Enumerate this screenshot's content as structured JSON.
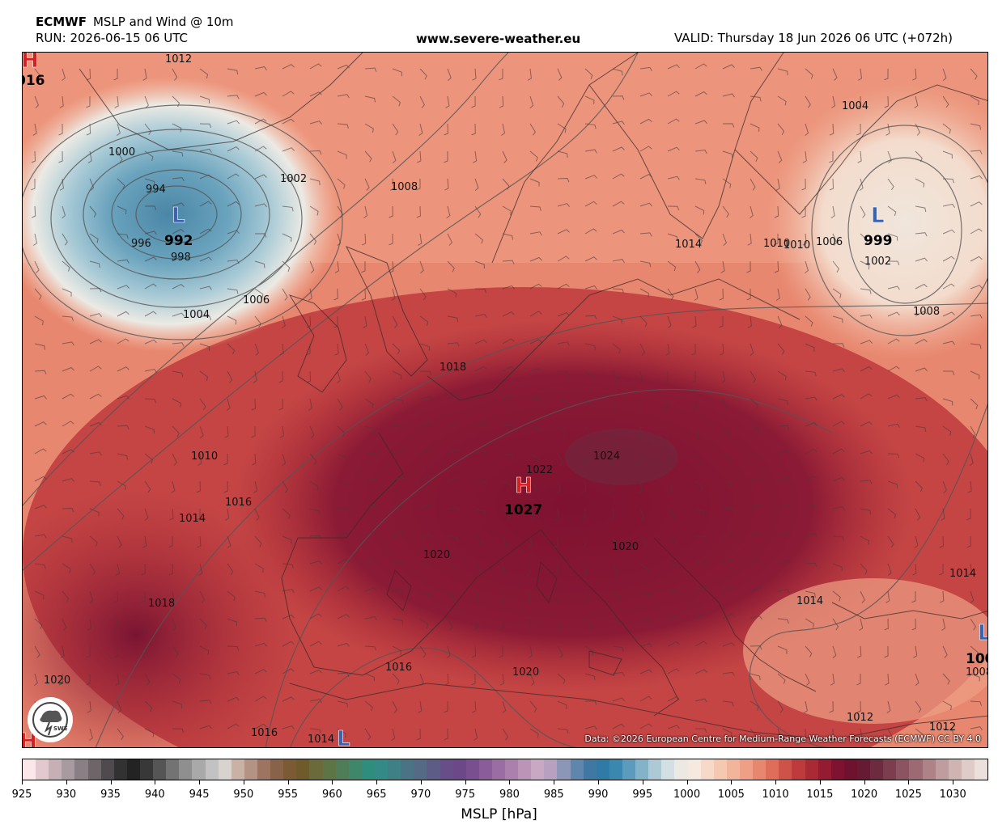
{
  "header": {
    "model": "ECMWF",
    "product": "MSLP and Wind @ 10m",
    "run": "RUN: 2026-06-15 06 UTC",
    "website": "www.severe-weather.eu",
    "valid": "VALID: Thursday 18 Jun 2026 06 UTC (+072h)"
  },
  "map": {
    "credit": "Data: ©2026 European Centre for Medium-Range Weather Forecasts (ECMWF) CC BY 4.0",
    "logo_text": "SWE",
    "pressure_centers": [
      {
        "type": "L",
        "value": "992",
        "color": "#3a62b0"
      },
      {
        "type": "L",
        "value": "999",
        "color": "#3a62b0"
      },
      {
        "type": "H",
        "value": "1027",
        "color": "#d42020"
      },
      {
        "type": "L",
        "value": "100",
        "color": "#3a62b0"
      },
      {
        "type": "H",
        "value": "016",
        "color": "#d42020"
      }
    ],
    "isobar_labels": [
      "1012",
      "1000",
      "994",
      "996",
      "998",
      "1002",
      "1008",
      "1004",
      "1006",
      "1010",
      "1014",
      "1016",
      "1018",
      "1020",
      "1022",
      "1024",
      "1014",
      "1018",
      "1020",
      "1016",
      "1016",
      "1014",
      "1020",
      "1020",
      "1014",
      "1014",
      "1012",
      "1008",
      "1006",
      "1004",
      "1002",
      "1008",
      "1010",
      "1012",
      "1010"
    ]
  },
  "colorbar": {
    "label": "MSLP [hPa]",
    "ticks": [
      "925",
      "930",
      "935",
      "940",
      "945",
      "950",
      "955",
      "960",
      "965",
      "970",
      "975",
      "980",
      "985",
      "990",
      "995",
      "1000",
      "1005",
      "1010",
      "1015",
      "1020",
      "1025",
      "1030"
    ],
    "colors": [
      "#fbe6ea",
      "#e3c9cf",
      "#c6b0b6",
      "#a99aa0",
      "#8a7f84",
      "#6e6569",
      "#4f4a4d",
      "#333233",
      "#232323",
      "#383838",
      "#555555",
      "#737373",
      "#8f8f8f",
      "#a9a9a9",
      "#c2c2c2",
      "#d9d3cf",
      "#c9b2a5",
      "#b49384",
      "#9c7460",
      "#886249",
      "#7b5a34",
      "#6f5a2c",
      "#6b6a3a",
      "#5d7445",
      "#4e7d58",
      "#3f866b",
      "#2f8d7d",
      "#338a86",
      "#3f7f86",
      "#4a7485",
      "#556a84",
      "#5d5c86",
      "#674e88",
      "#6d4889",
      "#7a4f8f",
      "#8a5d99",
      "#9a6da3",
      "#ab80ad",
      "#bb95b8",
      "#c8a8c3",
      "#b8a0c0",
      "#8c97b8",
      "#5f86ad",
      "#3f78a3",
      "#2f7aa6",
      "#3a88b0",
      "#5c9bbb",
      "#84b2c8",
      "#adc9d6",
      "#d3dfe3",
      "#ece9e3",
      "#f6e9df",
      "#f7d9c9",
      "#f5c8b2",
      "#f2b59c",
      "#ee9f85",
      "#e8876f",
      "#de6d5a",
      "#cf5248",
      "#bd3a3d",
      "#a92935",
      "#941b32",
      "#7f1231",
      "#6f1230",
      "#671a33",
      "#6e2a3f",
      "#7c3d4e",
      "#8c5360",
      "#9d6a73",
      "#ae8287",
      "#bf9c9d",
      "#cfb4b2",
      "#dfcbc7",
      "#ebe0db"
    ]
  }
}
